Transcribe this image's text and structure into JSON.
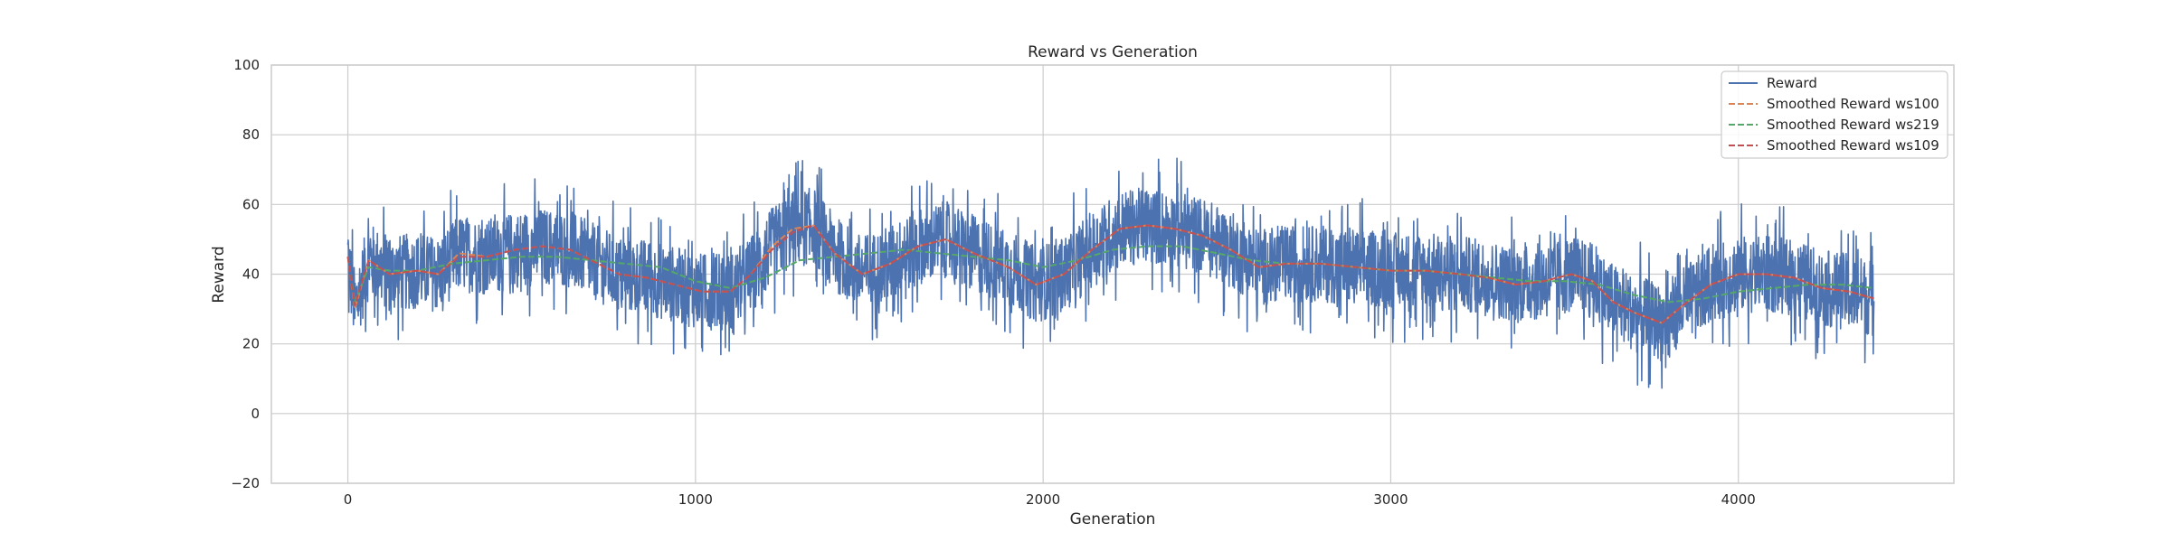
{
  "chart_data": {
    "type": "line",
    "title": "Reward vs Generation",
    "xlabel": "Generation",
    "ylabel": "Reward",
    "xlim": [
      -220,
      4620
    ],
    "ylim": [
      -20,
      100
    ],
    "xticks": [
      0,
      1000,
      2000,
      3000,
      4000
    ],
    "yticks": [
      -20,
      0,
      20,
      40,
      60,
      80,
      100
    ],
    "grid": true,
    "legend_position": "top-right",
    "raw_series": {
      "name": "Reward",
      "color": "#4c72b0",
      "style": "solid",
      "x_start": 0,
      "x_end": 4390,
      "anchors": [
        [
          0,
          45
        ],
        [
          20,
          30
        ],
        [
          60,
          44
        ],
        [
          120,
          40
        ],
        [
          200,
          41
        ],
        [
          260,
          40
        ],
        [
          320,
          46
        ],
        [
          400,
          45
        ],
        [
          480,
          47
        ],
        [
          560,
          48
        ],
        [
          640,
          47
        ],
        [
          700,
          44
        ],
        [
          780,
          40
        ],
        [
          860,
          39
        ],
        [
          940,
          37
        ],
        [
          1020,
          35
        ],
        [
          1100,
          35
        ],
        [
          1160,
          40
        ],
        [
          1220,
          48
        ],
        [
          1280,
          53
        ],
        [
          1340,
          54
        ],
        [
          1400,
          46
        ],
        [
          1480,
          40
        ],
        [
          1560,
          43
        ],
        [
          1640,
          48
        ],
        [
          1720,
          50
        ],
        [
          1800,
          46
        ],
        [
          1900,
          42
        ],
        [
          1980,
          37
        ],
        [
          2060,
          40
        ],
        [
          2140,
          47
        ],
        [
          2220,
          53
        ],
        [
          2300,
          54
        ],
        [
          2380,
          53
        ],
        [
          2460,
          51
        ],
        [
          2540,
          47
        ],
        [
          2620,
          42
        ],
        [
          2700,
          43
        ],
        [
          2800,
          43
        ],
        [
          2900,
          42
        ],
        [
          3000,
          41
        ],
        [
          3100,
          41
        ],
        [
          3200,
          40
        ],
        [
          3280,
          39
        ],
        [
          3360,
          37
        ],
        [
          3440,
          38
        ],
        [
          3520,
          40
        ],
        [
          3580,
          38
        ],
        [
          3640,
          32
        ],
        [
          3700,
          29
        ],
        [
          3780,
          26
        ],
        [
          3840,
          31
        ],
        [
          3920,
          37
        ],
        [
          4000,
          40
        ],
        [
          4080,
          40
        ],
        [
          4160,
          39
        ],
        [
          4240,
          36
        ],
        [
          4320,
          35
        ],
        [
          4390,
          33
        ]
      ],
      "noise_amplitude": 11,
      "clip": [
        3,
        81
      ]
    },
    "series": [
      {
        "name": "Smoothed Reward ws100",
        "color": "#dd8452",
        "style": "dashed",
        "x": [
          0,
          20,
          60,
          120,
          200,
          260,
          320,
          400,
          480,
          560,
          640,
          700,
          780,
          860,
          940,
          1020,
          1100,
          1160,
          1220,
          1280,
          1340,
          1400,
          1480,
          1560,
          1640,
          1720,
          1800,
          1900,
          1980,
          2060,
          2140,
          2220,
          2300,
          2380,
          2460,
          2540,
          2620,
          2700,
          2800,
          2900,
          3000,
          3100,
          3200,
          3280,
          3360,
          3440,
          3520,
          3580,
          3640,
          3700,
          3780,
          3840,
          3920,
          4000,
          4080,
          4160,
          4240,
          4320,
          4390
        ],
        "y": [
          45,
          30,
          44,
          40,
          41,
          40,
          46,
          45,
          47,
          48,
          47,
          44,
          40,
          39,
          37,
          35,
          35,
          40,
          48,
          53,
          54,
          46,
          40,
          43,
          48,
          50,
          46,
          42,
          37,
          40,
          47,
          53,
          54,
          53,
          51,
          47,
          42,
          43,
          43,
          42,
          41,
          41,
          40,
          39,
          37,
          38,
          40,
          38,
          32,
          29,
          26,
          31,
          37,
          40,
          40,
          39,
          36,
          35,
          33
        ]
      },
      {
        "name": "Smoothed Reward ws219",
        "color": "#55a868",
        "style": "dashed",
        "x": [
          0,
          20,
          60,
          120,
          200,
          300,
          400,
          500,
          600,
          700,
          800,
          900,
          1000,
          1100,
          1200,
          1300,
          1400,
          1500,
          1600,
          1700,
          1800,
          1900,
          2000,
          2100,
          2200,
          2300,
          2400,
          2500,
          2600,
          2700,
          2800,
          2900,
          3000,
          3100,
          3200,
          3300,
          3400,
          3500,
          3600,
          3700,
          3800,
          3900,
          4000,
          4100,
          4200,
          4300,
          4390
        ],
        "y": [
          45,
          32,
          42,
          41,
          41,
          43,
          44,
          45,
          45,
          44,
          43,
          42,
          38,
          36,
          39,
          44,
          45,
          46,
          47,
          46,
          45,
          44,
          42,
          44,
          47,
          48,
          48,
          46,
          44,
          43,
          43,
          42,
          41,
          41,
          40,
          39,
          38,
          38,
          37,
          34,
          32,
          33,
          35,
          36,
          37,
          37,
          36
        ]
      },
      {
        "name": "Smoothed Reward ws109",
        "color": "#c44e52",
        "style": "dashed",
        "x": [
          0,
          20,
          60,
          120,
          200,
          260,
          320,
          400,
          480,
          560,
          640,
          700,
          780,
          860,
          940,
          1020,
          1100,
          1160,
          1220,
          1280,
          1340,
          1400,
          1480,
          1560,
          1640,
          1720,
          1800,
          1900,
          1980,
          2060,
          2140,
          2220,
          2300,
          2380,
          2460,
          2540,
          2620,
          2700,
          2800,
          2900,
          3000,
          3100,
          3200,
          3280,
          3360,
          3440,
          3520,
          3580,
          3640,
          3700,
          3780,
          3840,
          3920,
          4000,
          4080,
          4160,
          4240,
          4320,
          4390
        ],
        "y": [
          45,
          31,
          44,
          40,
          41,
          40,
          45,
          45,
          47,
          48,
          47,
          44,
          40,
          39,
          37,
          35,
          35,
          40,
          47,
          52,
          54,
          46,
          40,
          43,
          48,
          50,
          46,
          42,
          37,
          40,
          47,
          53,
          54,
          53,
          51,
          47,
          42,
          43,
          43,
          42,
          41,
          41,
          40,
          39,
          37,
          38,
          40,
          38,
          32,
          29,
          26,
          31,
          37,
          40,
          40,
          39,
          36,
          35,
          33
        ]
      }
    ]
  },
  "legend": {
    "entries": [
      {
        "label": "Reward",
        "color": "#4c72b0",
        "style": "solid"
      },
      {
        "label": "Smoothed Reward ws100",
        "color": "#dd8452",
        "style": "dashed"
      },
      {
        "label": "Smoothed Reward ws219",
        "color": "#55a868",
        "style": "dashed"
      },
      {
        "label": "Smoothed Reward ws109",
        "color": "#c44e52",
        "style": "dashed"
      }
    ]
  }
}
